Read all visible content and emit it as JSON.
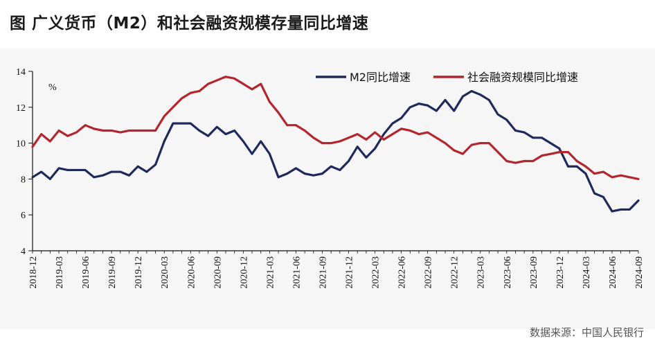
{
  "title": "图  广义货币（M2）和社会融资规模存量同比增速",
  "source": "数据来源：中国人民银行",
  "colors": {
    "m2": "#1f2a5c",
    "tsf": "#b3262d",
    "axis": "#111111"
  },
  "chart_data": {
    "type": "line",
    "title": "",
    "xlabel": "",
    "ylabel": "%",
    "ylim": [
      4,
      14
    ],
    "y_ticks": [
      4,
      6,
      8,
      10,
      12,
      14
    ],
    "x": [
      "2018-12",
      "2019-01",
      "2019-02",
      "2019-03",
      "2019-04",
      "2019-05",
      "2019-06",
      "2019-07",
      "2019-08",
      "2019-09",
      "2019-10",
      "2019-11",
      "2019-12",
      "2020-01",
      "2020-02",
      "2020-03",
      "2020-04",
      "2020-05",
      "2020-06",
      "2020-07",
      "2020-08",
      "2020-09",
      "2020-10",
      "2020-11",
      "2020-12",
      "2021-01",
      "2021-02",
      "2021-03",
      "2021-04",
      "2021-05",
      "2021-06",
      "2021-07",
      "2021-08",
      "2021-09",
      "2021-10",
      "2021-11",
      "2021-12",
      "2022-01",
      "2022-02",
      "2022-03",
      "2022-04",
      "2022-05",
      "2022-06",
      "2022-07",
      "2022-08",
      "2022-09",
      "2022-10",
      "2022-11",
      "2022-12",
      "2023-01",
      "2023-02",
      "2023-03",
      "2023-04",
      "2023-05",
      "2023-06",
      "2023-07",
      "2023-08",
      "2023-09",
      "2023-10",
      "2023-11",
      "2023-12",
      "2024-01",
      "2024-02",
      "2024-03",
      "2024-04",
      "2024-05",
      "2024-06",
      "2024-07",
      "2024-08",
      "2024-09"
    ],
    "x_tick_labels": [
      "2018-12",
      "2019-03",
      "2019-06",
      "2019-09",
      "2019-12",
      "2020-03",
      "2020-06",
      "2020-09",
      "2020-12",
      "2021-03",
      "2021-06",
      "2021-09",
      "2021-12",
      "2022-03",
      "2022-06",
      "2022-09",
      "2022-12",
      "2023-03",
      "2023-06",
      "2023-09",
      "2023-12",
      "2024-03",
      "2024-06",
      "2024-09"
    ],
    "legend_position": "top-right",
    "grid": false,
    "series": [
      {
        "name": "M2同比增速",
        "color_key": "m2",
        "values": [
          8.1,
          8.4,
          8.0,
          8.6,
          8.5,
          8.5,
          8.5,
          8.1,
          8.2,
          8.4,
          8.4,
          8.2,
          8.7,
          8.4,
          8.8,
          10.1,
          11.1,
          11.1,
          11.1,
          10.7,
          10.4,
          10.9,
          10.5,
          10.7,
          10.1,
          9.4,
          10.1,
          9.4,
          8.1,
          8.3,
          8.6,
          8.3,
          8.2,
          8.3,
          8.7,
          8.5,
          9.0,
          9.8,
          9.2,
          9.7,
          10.5,
          11.1,
          11.4,
          12.0,
          12.2,
          12.1,
          11.8,
          12.4,
          11.8,
          12.6,
          12.9,
          12.7,
          12.4,
          11.6,
          11.3,
          10.7,
          10.6,
          10.3,
          10.3,
          10.0,
          9.7,
          8.7,
          8.7,
          8.3,
          7.2,
          7.0,
          6.2,
          6.3,
          6.3,
          6.8
        ]
      },
      {
        "name": "社会融资规模同比增速",
        "color_key": "tsf",
        "values": [
          9.8,
          10.5,
          10.1,
          10.7,
          10.4,
          10.6,
          11.0,
          10.8,
          10.7,
          10.7,
          10.6,
          10.7,
          10.7,
          10.7,
          10.7,
          11.5,
          12.0,
          12.5,
          12.8,
          12.9,
          13.3,
          13.5,
          13.7,
          13.6,
          13.3,
          13.0,
          13.3,
          12.3,
          11.7,
          11.0,
          11.0,
          10.7,
          10.3,
          10.0,
          10.0,
          10.1,
          10.3,
          10.5,
          10.2,
          10.6,
          10.2,
          10.5,
          10.8,
          10.7,
          10.5,
          10.6,
          10.3,
          10.0,
          9.6,
          9.4,
          9.9,
          10.0,
          10.0,
          9.5,
          9.0,
          8.9,
          9.0,
          9.0,
          9.3,
          9.4,
          9.5,
          9.5,
          9.0,
          8.7,
          8.3,
          8.4,
          8.1,
          8.2,
          8.1,
          8.0
        ]
      }
    ]
  }
}
